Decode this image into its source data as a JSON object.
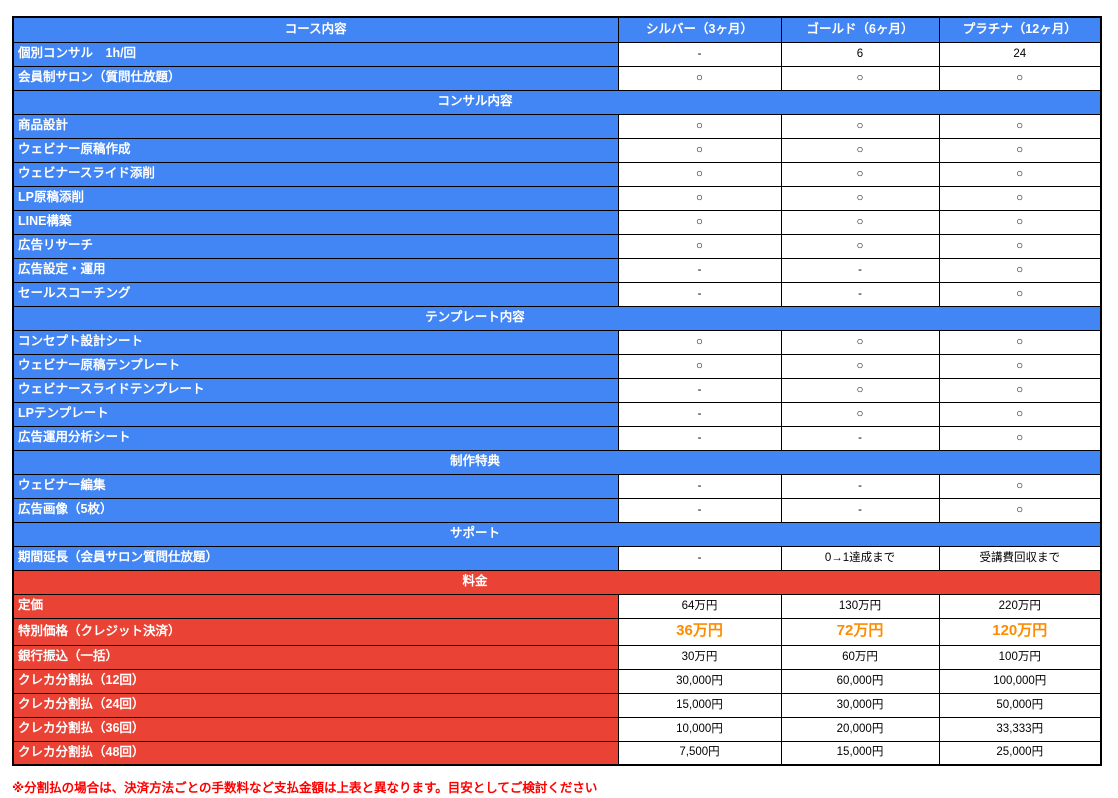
{
  "table": {
    "header": {
      "label": "コース内容",
      "plans": [
        "シルバー（3ヶ月）",
        "ゴールド（6ヶ月）",
        "プラチナ（12ヶ月）"
      ]
    },
    "sections": [
      {
        "title": "",
        "theme": "blue",
        "rows": [
          {
            "label": "個別コンサル　1h/回",
            "values": [
              "-",
              "6",
              "24"
            ]
          },
          {
            "label": "会員制サロン（質問仕放題）",
            "values": [
              "○",
              "○",
              "○"
            ]
          }
        ]
      },
      {
        "title": "コンサル内容",
        "theme": "blue",
        "rows": [
          {
            "label": "商品設計",
            "values": [
              "○",
              "○",
              "○"
            ]
          },
          {
            "label": "ウェビナー原稿作成",
            "values": [
              "○",
              "○",
              "○"
            ]
          },
          {
            "label": "ウェビナースライド添削",
            "values": [
              "○",
              "○",
              "○"
            ]
          },
          {
            "label": "LP原稿添削",
            "values": [
              "○",
              "○",
              "○"
            ]
          },
          {
            "label": "LINE構築",
            "values": [
              "○",
              "○",
              "○"
            ]
          },
          {
            "label": "広告リサーチ",
            "values": [
              "○",
              "○",
              "○"
            ]
          },
          {
            "label": "広告設定・運用",
            "values": [
              "-",
              "-",
              "○"
            ]
          },
          {
            "label": "セールスコーチング",
            "values": [
              "-",
              "-",
              "○"
            ]
          }
        ]
      },
      {
        "title": "テンプレート内容",
        "theme": "blue",
        "rows": [
          {
            "label": "コンセプト設計シート",
            "values": [
              "○",
              "○",
              "○"
            ]
          },
          {
            "label": "ウェビナー原稿テンプレート",
            "values": [
              "○",
              "○",
              "○"
            ]
          },
          {
            "label": "ウェビナースライドテンプレート",
            "values": [
              "-",
              "○",
              "○"
            ]
          },
          {
            "label": "LPテンプレート",
            "values": [
              "-",
              "○",
              "○"
            ]
          },
          {
            "label": "広告運用分析シート",
            "values": [
              "-",
              "-",
              "○"
            ]
          }
        ]
      },
      {
        "title": "制作特典",
        "theme": "blue",
        "rows": [
          {
            "label": "ウェビナー編集",
            "values": [
              "-",
              "-",
              "○"
            ]
          },
          {
            "label": "広告画像（5枚）",
            "values": [
              "-",
              "-",
              "○"
            ]
          }
        ]
      },
      {
        "title": "サポート",
        "theme": "blue",
        "rows": [
          {
            "label": "期間延長（会員サロン質問仕放題）",
            "values": [
              "-",
              "0→1達成まで",
              "受講費回収まで"
            ]
          }
        ]
      },
      {
        "title": "料金",
        "theme": "red",
        "rows": [
          {
            "label": "定価",
            "values": [
              "64万円",
              "130万円",
              "220万円"
            ]
          },
          {
            "label": "特別価格（クレジット決済）",
            "values": [
              "36万円",
              "72万円",
              "120万円"
            ],
            "highlight": true
          },
          {
            "label": "銀行振込（一括）",
            "values": [
              "30万円",
              "60万円",
              "100万円"
            ]
          },
          {
            "label": "クレカ分割払（12回）",
            "values": [
              "30,000円",
              "60,000円",
              "100,000円"
            ]
          },
          {
            "label": "クレカ分割払（24回）",
            "values": [
              "15,000円",
              "30,000円",
              "50,000円"
            ]
          },
          {
            "label": "クレカ分割払（36回）",
            "values": [
              "10,000円",
              "20,000円",
              "33,333円"
            ]
          },
          {
            "label": "クレカ分割払（48回）",
            "values": [
              "7,500円",
              "15,000円",
              "25,000円"
            ]
          }
        ]
      }
    ]
  },
  "footnote": "※分割払の場合は、決済方法ごとの手数料など支払金額は上表と異なります。目安としてご検討ください",
  "symbols": {
    "included": "○",
    "not_included": "-"
  },
  "colors": {
    "blue": "#4285F4",
    "red": "#EA4335",
    "highlight_text": "#FF8C00",
    "note_text": "#FF0000",
    "border": "#000000"
  }
}
